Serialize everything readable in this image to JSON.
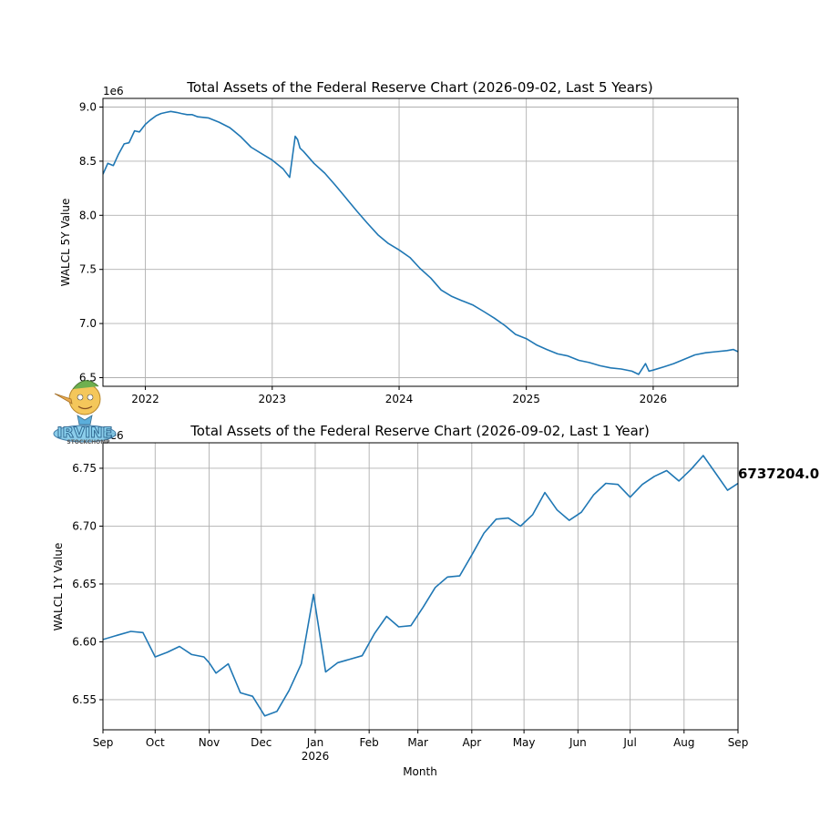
{
  "watermark": {
    "text": "IRVINE",
    "subtext": "STOCKCHOMP"
  },
  "colors": {
    "series": "#1f77b4",
    "grid": "#b0b0b0"
  },
  "chart_data": [
    {
      "type": "line",
      "title": "Total Assets of the Federal Reserve Chart (2026-09-02, Last 5 Years)",
      "xlabel": "",
      "ylabel": "WALCL 5Y Value",
      "y_offset_label": "1e6",
      "x_range": [
        "2021-09-01",
        "2026-09-02"
      ],
      "ylim": [
        6.42,
        9.08
      ],
      "yticks": [
        6.5,
        7.0,
        7.5,
        8.0,
        8.5,
        9.0
      ],
      "ytick_labels": [
        "6.5",
        "7.0",
        "7.5",
        "8.0",
        "8.5",
        "9.0"
      ],
      "xticks": [
        "2022-01-01",
        "2023-01-01",
        "2024-01-01",
        "2025-01-01",
        "2026-01-01"
      ],
      "xtick_labels": [
        "2022",
        "2023",
        "2024",
        "2025",
        "2026"
      ],
      "grid": true,
      "series": [
        {
          "x": [
            "2021-09-01",
            "2021-09-15",
            "2021-10-01",
            "2021-10-15",
            "2021-11-01",
            "2021-11-15",
            "2021-12-01",
            "2021-12-15",
            "2022-01-01",
            "2022-01-15",
            "2022-02-01",
            "2022-02-15",
            "2022-03-01",
            "2022-03-15",
            "2022-04-01",
            "2022-04-15",
            "2022-05-01",
            "2022-05-15",
            "2022-06-01",
            "2022-07-01",
            "2022-08-01",
            "2022-09-01",
            "2022-10-01",
            "2022-11-01",
            "2022-12-01",
            "2023-01-01",
            "2023-02-01",
            "2023-02-20",
            "2023-03-08",
            "2023-03-15",
            "2023-03-22",
            "2023-04-01",
            "2023-05-01",
            "2023-06-01",
            "2023-07-01",
            "2023-08-01",
            "2023-09-01",
            "2023-10-01",
            "2023-11-01",
            "2023-12-01",
            "2024-01-01",
            "2024-02-01",
            "2024-03-01",
            "2024-04-01",
            "2024-05-01",
            "2024-06-01",
            "2024-07-01",
            "2024-08-01",
            "2024-09-01",
            "2024-10-01",
            "2024-11-01",
            "2024-12-01",
            "2025-01-01",
            "2025-02-01",
            "2025-03-01",
            "2025-04-01",
            "2025-05-01",
            "2025-06-01",
            "2025-07-01",
            "2025-08-01",
            "2025-09-01",
            "2025-10-01",
            "2025-11-01",
            "2025-11-20",
            "2025-12-10",
            "2025-12-20",
            "2026-01-01",
            "2026-02-01",
            "2026-03-01",
            "2026-04-01",
            "2026-05-01",
            "2026-06-01",
            "2026-07-01",
            "2026-08-01",
            "2026-08-20",
            "2026-09-02"
          ],
          "values": [
            8.38,
            8.48,
            8.46,
            8.56,
            8.66,
            8.67,
            8.78,
            8.77,
            8.84,
            8.88,
            8.92,
            8.94,
            8.95,
            8.96,
            8.95,
            8.94,
            8.93,
            8.93,
            8.91,
            8.9,
            8.86,
            8.81,
            8.73,
            8.63,
            8.57,
            8.51,
            8.43,
            8.35,
            8.73,
            8.7,
            8.62,
            8.59,
            8.48,
            8.39,
            8.28,
            8.16,
            8.04,
            7.93,
            7.82,
            7.74,
            7.68,
            7.61,
            7.51,
            7.42,
            7.31,
            7.25,
            7.21,
            7.17,
            7.11,
            7.05,
            6.98,
            6.9,
            6.86,
            6.8,
            6.76,
            6.72,
            6.7,
            6.66,
            6.64,
            6.61,
            6.59,
            6.58,
            6.56,
            6.53,
            6.63,
            6.56,
            6.57,
            6.6,
            6.63,
            6.67,
            6.71,
            6.73,
            6.74,
            6.75,
            6.76,
            6.74
          ]
        }
      ]
    },
    {
      "type": "line",
      "title": "Total Assets of the Federal Reserve Chart (2026-09-02, Last 1 Year)",
      "xlabel": "Month",
      "ylabel": "WALCL 1Y Value",
      "y_offset_label": "1e6",
      "x_range": [
        "2025-09-01",
        "2026-09-01"
      ],
      "ylim": [
        6.524,
        6.772
      ],
      "yticks": [
        6.55,
        6.6,
        6.65,
        6.7,
        6.75
      ],
      "ytick_labels": [
        "6.55",
        "6.60",
        "6.65",
        "6.70",
        "6.75"
      ],
      "xticks": [
        "2025-09-01",
        "2025-10-01",
        "2025-11-01",
        "2025-12-01",
        "2026-01-01",
        "2026-02-01",
        "2026-03-01",
        "2026-04-01",
        "2026-05-01",
        "2026-06-01",
        "2026-07-01",
        "2026-08-01",
        "2026-09-01"
      ],
      "xtick_labels": [
        "Sep",
        "Oct",
        "Nov",
        "Dec",
        "Jan",
        "Feb",
        "Mar",
        "Apr",
        "May",
        "Jun",
        "Jul",
        "Aug",
        "Sep"
      ],
      "xtick_sublabel": {
        "under": "Jan",
        "text": "2026"
      },
      "grid": true,
      "last_value_label": "6737204.0",
      "series": [
        {
          "x": [
            "2025-09-01",
            "2025-09-10",
            "2025-09-17",
            "2025-09-24",
            "2025-10-01",
            "2025-10-08",
            "2025-10-15",
            "2025-10-22",
            "2025-10-29",
            "2025-11-01",
            "2025-11-05",
            "2025-11-12",
            "2025-11-19",
            "2025-11-26",
            "2025-12-03",
            "2025-12-10",
            "2025-12-17",
            "2025-12-24",
            "2025-12-31",
            "2026-01-07",
            "2026-01-14",
            "2026-01-21",
            "2026-01-28",
            "2026-02-04",
            "2026-02-11",
            "2026-02-18",
            "2026-02-25",
            "2026-03-04",
            "2026-03-11",
            "2026-03-18",
            "2026-03-25",
            "2026-04-01",
            "2026-04-08",
            "2026-04-15",
            "2026-04-22",
            "2026-04-29",
            "2026-05-06",
            "2026-05-13",
            "2026-05-20",
            "2026-05-27",
            "2026-06-03",
            "2026-06-10",
            "2026-06-17",
            "2026-06-24",
            "2026-07-01",
            "2026-07-08",
            "2026-07-15",
            "2026-07-22",
            "2026-07-29",
            "2026-08-05",
            "2026-08-12",
            "2026-08-19",
            "2026-08-26",
            "2026-09-01"
          ],
          "values": [
            6.602,
            6.606,
            6.609,
            6.608,
            6.587,
            6.591,
            6.596,
            6.589,
            6.587,
            6.582,
            6.573,
            6.581,
            6.556,
            6.553,
            6.536,
            6.54,
            6.558,
            6.581,
            6.641,
            6.574,
            6.582,
            6.585,
            6.588,
            6.607,
            6.622,
            6.613,
            6.614,
            6.63,
            6.647,
            6.656,
            6.657,
            6.675,
            6.694,
            6.706,
            6.707,
            6.7,
            6.71,
            6.729,
            6.714,
            6.705,
            6.712,
            6.727,
            6.737,
            6.736,
            6.725,
            6.736,
            6.743,
            6.748,
            6.739,
            6.749,
            6.761,
            6.746,
            6.731,
            6.737
          ]
        }
      ]
    }
  ]
}
